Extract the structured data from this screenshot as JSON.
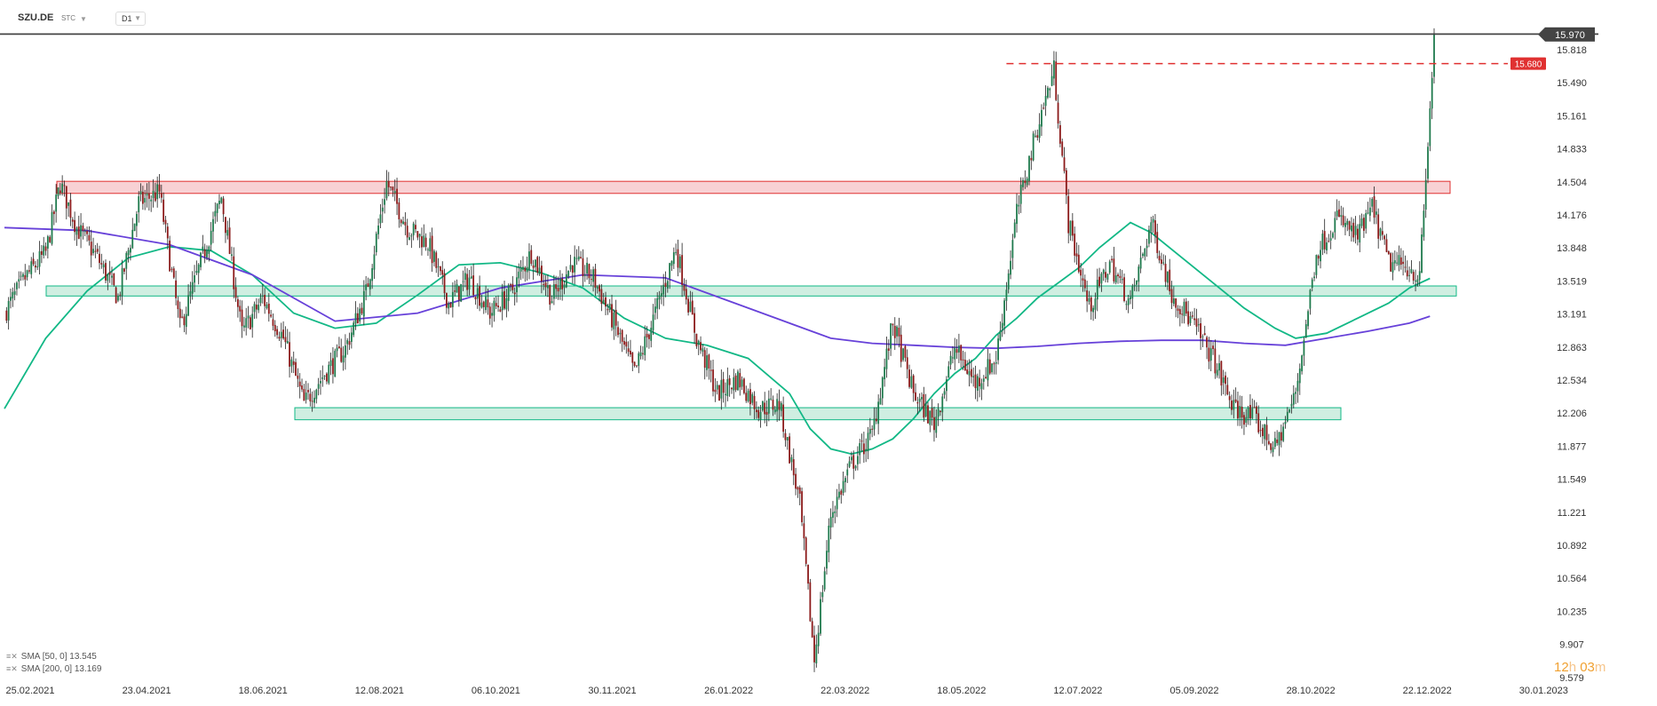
{
  "header": {
    "symbol": "SZU.DE",
    "badge": "STC",
    "timeframe": "D1"
  },
  "legend": [
    {
      "label": "SMA [50, 0] 13.545",
      "color": "#12b886"
    },
    {
      "label": "SMA [200, 0] 13.169",
      "color": "#6741d9"
    }
  ],
  "timer": {
    "hours": "12",
    "h": "h",
    "minutes": "03",
    "m": "m"
  },
  "chart_data": {
    "type": "candlestick",
    "instrument": "SZU.DE",
    "timeframe": "D1",
    "y_ticks": [
      "15.818",
      "15.490",
      "15.161",
      "14.833",
      "14.504",
      "14.176",
      "13.848",
      "13.519",
      "13.191",
      "12.863",
      "12.534",
      "12.206",
      "11.877",
      "11.549",
      "11.221",
      "10.892",
      "10.564",
      "10.235",
      "9.907",
      "9.579"
    ],
    "x_ticks": [
      "25.02.2021",
      "23.04.2021",
      "18.06.2021",
      "12.08.2021",
      "06.10.2021",
      "30.11.2021",
      "26.01.2022",
      "22.03.2022",
      "18.05.2022",
      "12.07.2022",
      "05.09.2022",
      "28.10.2022",
      "22.12.2022",
      "30.01.2023"
    ],
    "ylim": [
      9.579,
      15.97
    ],
    "current_price": "15.970",
    "current_price_value": 15.97,
    "resistance_level": {
      "label": "15.680",
      "value": 15.68
    },
    "zones": [
      {
        "type": "resistance",
        "low": 14.39,
        "high": 14.51,
        "color": "#f5c2c5"
      },
      {
        "type": "support",
        "low": 13.37,
        "high": 13.47,
        "color": "#bfe8d7"
      },
      {
        "type": "support",
        "low": 12.14,
        "high": 12.26,
        "color": "#bfe8d7"
      }
    ],
    "close_path": [
      [
        0,
        13.2
      ],
      [
        10,
        13.55
      ],
      [
        20,
        13.8
      ],
      [
        27,
        14.49
      ],
      [
        35,
        14.05
      ],
      [
        45,
        13.75
      ],
      [
        55,
        13.35
      ],
      [
        65,
        14.3
      ],
      [
        75,
        14.4
      ],
      [
        85,
        13.05
      ],
      [
        95,
        13.7
      ],
      [
        105,
        14.35
      ],
      [
        115,
        13.0
      ],
      [
        125,
        13.35
      ],
      [
        135,
        12.95
      ],
      [
        145,
        12.3
      ],
      [
        155,
        12.6
      ],
      [
        165,
        12.85
      ],
      [
        175,
        13.4
      ],
      [
        185,
        14.5
      ],
      [
        195,
        14.05
      ],
      [
        205,
        13.9
      ],
      [
        215,
        13.3
      ],
      [
        225,
        13.55
      ],
      [
        235,
        13.2
      ],
      [
        245,
        13.4
      ],
      [
        255,
        13.8
      ],
      [
        265,
        13.35
      ],
      [
        275,
        13.7
      ],
      [
        285,
        13.55
      ],
      [
        295,
        13.1
      ],
      [
        305,
        12.6
      ],
      [
        315,
        13.2
      ],
      [
        325,
        13.85
      ],
      [
        335,
        12.95
      ],
      [
        345,
        12.4
      ],
      [
        355,
        12.55
      ],
      [
        365,
        12.25
      ],
      [
        375,
        12.3
      ],
      [
        385,
        11.3
      ],
      [
        392,
        9.75
      ],
      [
        400,
        11.2
      ],
      [
        410,
        11.7
      ],
      [
        420,
        12.0
      ],
      [
        430,
        13.1
      ],
      [
        440,
        12.4
      ],
      [
        450,
        12.1
      ],
      [
        460,
        12.85
      ],
      [
        470,
        12.5
      ],
      [
        480,
        12.75
      ],
      [
        490,
        14.2
      ],
      [
        500,
        15.05
      ],
      [
        508,
        15.62
      ],
      [
        515,
        14.1
      ],
      [
        525,
        13.25
      ],
      [
        535,
        13.7
      ],
      [
        545,
        13.3
      ],
      [
        555,
        14.1
      ],
      [
        565,
        13.4
      ],
      [
        575,
        13.1
      ],
      [
        585,
        12.75
      ],
      [
        595,
        12.25
      ],
      [
        605,
        12.15
      ],
      [
        615,
        11.85
      ],
      [
        625,
        12.4
      ],
      [
        635,
        13.8
      ],
      [
        645,
        14.15
      ],
      [
        655,
        13.95
      ],
      [
        662,
        14.25
      ],
      [
        670,
        13.7
      ],
      [
        680,
        13.65
      ],
      [
        685,
        13.55
      ],
      [
        690,
        15.2
      ],
      [
        692,
        15.97
      ]
    ],
    "series": [
      {
        "name": "SMA [50, 0]",
        "value": 13.545,
        "color": "#12b886",
        "points": [
          [
            0,
            12.25
          ],
          [
            20,
            12.95
          ],
          [
            40,
            13.42
          ],
          [
            60,
            13.75
          ],
          [
            80,
            13.86
          ],
          [
            100,
            13.82
          ],
          [
            120,
            13.58
          ],
          [
            140,
            13.2
          ],
          [
            160,
            13.05
          ],
          [
            180,
            13.1
          ],
          [
            200,
            13.38
          ],
          [
            220,
            13.68
          ],
          [
            240,
            13.7
          ],
          [
            260,
            13.6
          ],
          [
            280,
            13.45
          ],
          [
            300,
            13.15
          ],
          [
            320,
            12.95
          ],
          [
            340,
            12.88
          ],
          [
            360,
            12.75
          ],
          [
            380,
            12.4
          ],
          [
            390,
            12.05
          ],
          [
            400,
            11.85
          ],
          [
            410,
            11.8
          ],
          [
            420,
            11.85
          ],
          [
            430,
            11.95
          ],
          [
            440,
            12.15
          ],
          [
            450,
            12.4
          ],
          [
            460,
            12.6
          ],
          [
            470,
            12.75
          ],
          [
            480,
            12.98
          ],
          [
            490,
            13.15
          ],
          [
            500,
            13.35
          ],
          [
            510,
            13.5
          ],
          [
            520,
            13.65
          ],
          [
            530,
            13.85
          ],
          [
            545,
            14.1
          ],
          [
            555,
            14.0
          ],
          [
            570,
            13.75
          ],
          [
            585,
            13.5
          ],
          [
            600,
            13.25
          ],
          [
            615,
            13.05
          ],
          [
            625,
            12.95
          ],
          [
            640,
            13.0
          ],
          [
            655,
            13.15
          ],
          [
            670,
            13.3
          ],
          [
            680,
            13.45
          ],
          [
            690,
            13.545
          ]
        ]
      },
      {
        "name": "SMA [200, 0]",
        "value": 13.169,
        "color": "#6741d9",
        "points": [
          [
            0,
            14.05
          ],
          [
            40,
            14.02
          ],
          [
            80,
            13.88
          ],
          [
            120,
            13.58
          ],
          [
            160,
            13.12
          ],
          [
            200,
            13.2
          ],
          [
            240,
            13.45
          ],
          [
            280,
            13.58
          ],
          [
            320,
            13.55
          ],
          [
            340,
            13.4
          ],
          [
            360,
            13.25
          ],
          [
            380,
            13.1
          ],
          [
            400,
            12.95
          ],
          [
            420,
            12.9
          ],
          [
            440,
            12.88
          ],
          [
            460,
            12.86
          ],
          [
            480,
            12.85
          ],
          [
            500,
            12.87
          ],
          [
            520,
            12.9
          ],
          [
            540,
            12.92
          ],
          [
            560,
            12.93
          ],
          [
            580,
            12.93
          ],
          [
            600,
            12.9
          ],
          [
            620,
            12.88
          ],
          [
            640,
            12.95
          ],
          [
            660,
            13.02
          ],
          [
            680,
            13.1
          ],
          [
            690,
            13.169
          ]
        ]
      }
    ]
  }
}
